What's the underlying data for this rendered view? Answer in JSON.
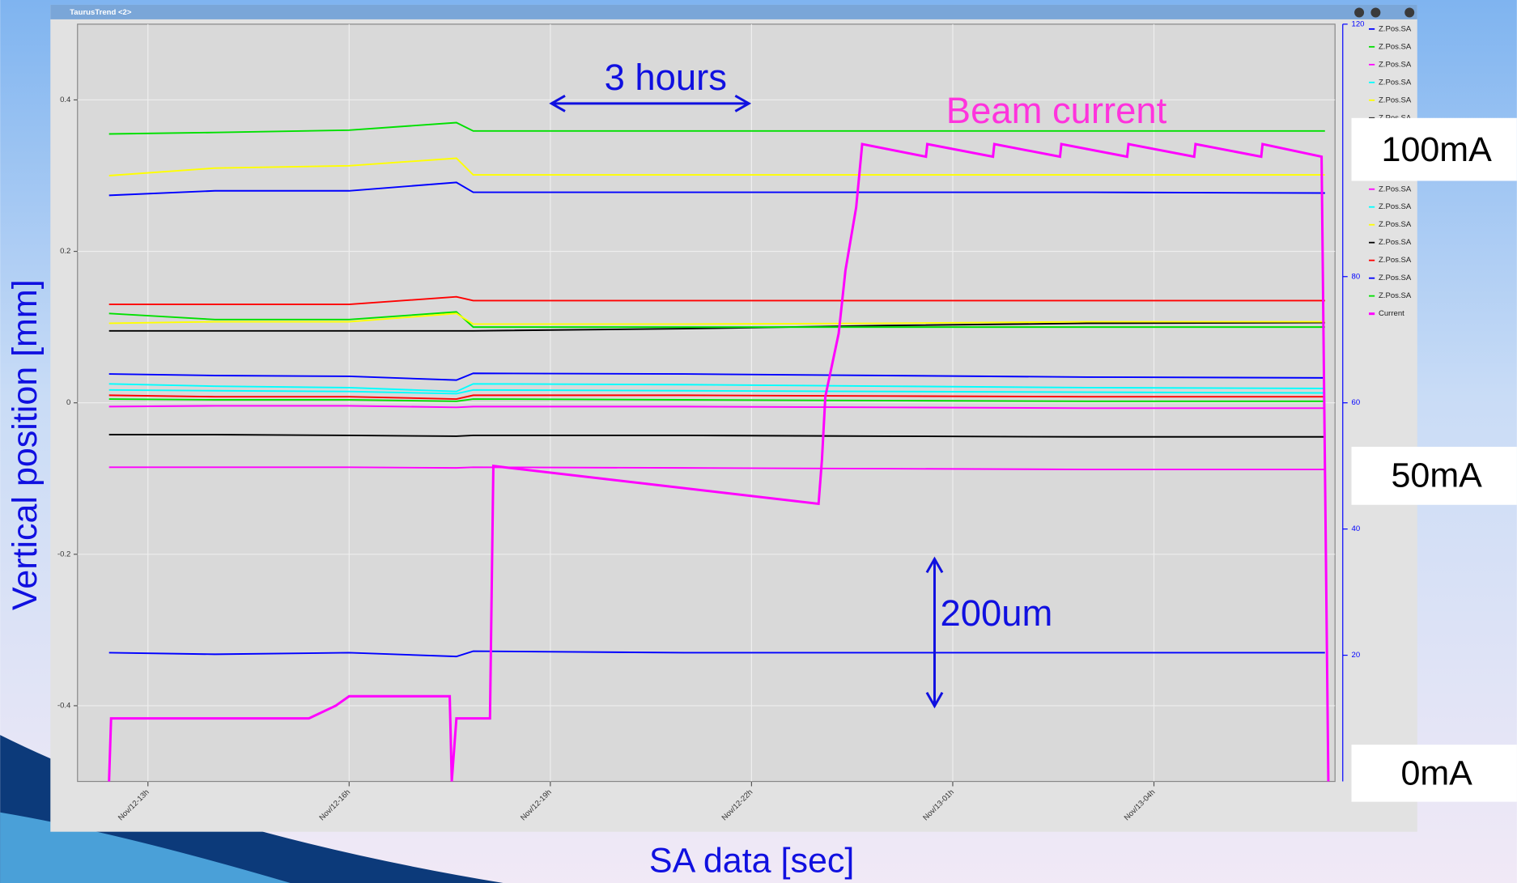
{
  "window": {
    "title": "TaurusTrend <2>"
  },
  "chart_data": {
    "type": "line",
    "xlabel": "SA data [sec]",
    "ylabel": "Vertical position [mm]",
    "annotations": [
      "3 hours",
      "Beam current",
      "200um",
      "100mA",
      "50mA",
      "0mA"
    ],
    "grid": true,
    "legend": "right",
    "xlim": [
      11.95,
      30.7
    ],
    "xticks": [
      {
        "value": 13,
        "label": "Nov/12-13h"
      },
      {
        "value": 16,
        "label": "Nov/12-16h"
      },
      {
        "value": 19,
        "label": "Nov/12-19h"
      },
      {
        "value": 22,
        "label": "Nov/12-22h"
      },
      {
        "value": 25,
        "label": "Nov/13-01h"
      },
      {
        "value": 28,
        "label": "Nov/13-04h"
      }
    ],
    "ylim": [
      -0.5,
      0.5
    ],
    "yticks": [
      -0.4,
      -0.2,
      0,
      0.2,
      0.4
    ],
    "y2lim": [
      0,
      120
    ],
    "y2ticks": [
      20,
      40,
      60,
      80,
      120
    ],
    "x": [
      12.42,
      14,
      16,
      17.6,
      17.85,
      21,
      24,
      27,
      30.55
    ],
    "series": [
      {
        "name": "Z.Pos.SA",
        "color": "#0000ff",
        "values": [
          0.274,
          0.28,
          0.28,
          0.291,
          0.278,
          0.278,
          0.278,
          0.278,
          0.277
        ]
      },
      {
        "name": "Z.Pos.SA",
        "color": "#00e000",
        "values": [
          0.355,
          0.357,
          0.36,
          0.37,
          0.359,
          0.359,
          0.359,
          0.359,
          0.359
        ]
      },
      {
        "name": "Z.Pos.SA",
        "color": "#ff00ff",
        "values": [
          -0.005,
          -0.004,
          -0.004,
          -0.006,
          -0.005,
          -0.005,
          -0.006,
          -0.007,
          -0.007
        ]
      },
      {
        "name": "Z.Pos.SA",
        "color": "#00ffff",
        "values": [
          0.025,
          0.022,
          0.02,
          0.015,
          0.025,
          0.024,
          0.022,
          0.02,
          0.019
        ]
      },
      {
        "name": "Z.Pos.SA",
        "color": "#ffff00",
        "values": [
          0.3,
          0.31,
          0.313,
          0.323,
          0.301,
          0.301,
          0.301,
          0.301,
          0.301
        ]
      },
      {
        "name": "Z.Pos.SA",
        "color": "#000000",
        "values": [
          0.095,
          0.095,
          0.095,
          0.095,
          0.095,
          0.098,
          0.102,
          0.105,
          0.106
        ]
      },
      {
        "name": "Z.Pos.SA",
        "color": "#ff0000",
        "values": [
          0.13,
          0.13,
          0.13,
          0.14,
          0.135,
          0.135,
          0.135,
          0.135,
          0.135
        ]
      },
      {
        "name": "Z.Pos.SA",
        "color": "#0000ff",
        "values": [
          0.038,
          0.036,
          0.035,
          0.03,
          0.039,
          0.038,
          0.036,
          0.034,
          0.033
        ]
      },
      {
        "name": "Z.Pos.SA",
        "color": "#00e000",
        "values": [
          0.118,
          0.11,
          0.11,
          0.12,
          0.1,
          0.1,
          0.1,
          0.1,
          0.1
        ]
      },
      {
        "name": "Z.Pos.SA",
        "color": "#ff00ff",
        "values": [
          -0.085,
          -0.085,
          -0.085,
          -0.086,
          -0.085,
          -0.086,
          -0.087,
          -0.088,
          -0.088
        ]
      },
      {
        "name": "Z.Pos.SA",
        "color": "#00ffff",
        "values": [
          0.017,
          0.016,
          0.015,
          0.012,
          0.017,
          0.016,
          0.015,
          0.014,
          0.013
        ]
      },
      {
        "name": "Z.Pos.SA",
        "color": "#ffff00",
        "values": [
          0.105,
          0.107,
          0.107,
          0.118,
          0.104,
          0.104,
          0.105,
          0.107,
          0.107
        ]
      },
      {
        "name": "Z.Pos.SA",
        "color": "#000000",
        "values": [
          -0.042,
          -0.042,
          -0.043,
          -0.044,
          -0.043,
          -0.043,
          -0.044,
          -0.045,
          -0.045
        ]
      },
      {
        "name": "Z.Pos.SA",
        "color": "#ff0000",
        "values": [
          0.01,
          0.008,
          0.008,
          0.005,
          0.01,
          0.01,
          0.009,
          0.008,
          0.008
        ]
      },
      {
        "name": "Z.Pos.SA",
        "color": "#0000ff",
        "values": [
          -0.33,
          -0.332,
          -0.33,
          -0.335,
          -0.328,
          -0.33,
          -0.33,
          -0.33,
          -0.33
        ]
      },
      {
        "name": "Z.Pos.SA",
        "color": "#00e000",
        "values": [
          0.005,
          0.004,
          0.004,
          0.002,
          0.005,
          0.004,
          0.003,
          0.002,
          0.002
        ]
      },
      {
        "name": "Current",
        "color": "#ff00ff",
        "axis": "y2",
        "x": [
          12.42,
          12.45,
          15.4,
          15.8,
          16.0,
          17.5,
          17.53,
          17.6,
          18.1,
          18.15,
          23.0,
          23.05,
          23.1,
          23.3,
          23.4,
          23.56,
          23.65,
          24.6,
          24.62,
          25.6,
          25.62,
          26.6,
          26.62,
          27.6,
          27.62,
          28.6,
          28.62,
          29.6,
          29.62,
          30.5,
          30.6
        ],
        "values": [
          0,
          10,
          10,
          12,
          13.5,
          13.5,
          0,
          10,
          10,
          50,
          44,
          51,
          61,
          71,
          81,
          91,
          101,
          99,
          101,
          99,
          101,
          99,
          101,
          99,
          101,
          99,
          101,
          99,
          101,
          99,
          0
        ]
      }
    ]
  }
}
